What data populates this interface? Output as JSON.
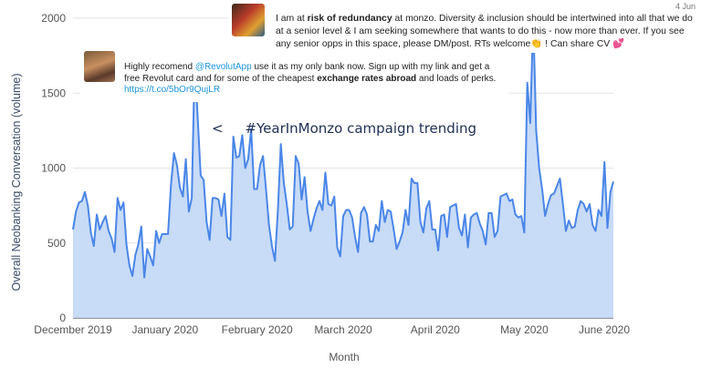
{
  "chart_data": {
    "type": "area",
    "xlabel": "Month",
    "ylabel": "Overall Neobanking Conversation (volume)",
    "ylim": [
      0,
      2000
    ],
    "yticks": [
      0,
      500,
      1000,
      1500,
      2000
    ],
    "xtick_labels": [
      "December 2019",
      "January 2020",
      "February 2020",
      "March 2020",
      "April 2020",
      "May 2020",
      "June 2020"
    ],
    "x_start": "2019-12-01",
    "grid": true,
    "colors": {
      "line": "#4a86e8",
      "fill": "#c5d9f7",
      "grid": "#e3e3e3",
      "axis": "#555555"
    },
    "values": [
      590,
      710,
      770,
      780,
      840,
      750,
      570,
      480,
      690,
      590,
      640,
      680,
      580,
      530,
      440,
      800,
      720,
      770,
      490,
      350,
      280,
      420,
      490,
      610,
      270,
      460,
      410,
      350,
      580,
      500,
      560,
      560,
      560,
      890,
      1100,
      1020,
      870,
      810,
      1060,
      710,
      800,
      1730,
      1330,
      950,
      920,
      640,
      520,
      800,
      800,
      790,
      680,
      830,
      540,
      520,
      1210,
      1070,
      1080,
      1220,
      1000,
      1060,
      1260,
      860,
      860,
      1020,
      1080,
      860,
      620,
      480,
      380,
      720,
      1160,
      900,
      760,
      590,
      610,
      1080,
      1030,
      790,
      940,
      710,
      580,
      660,
      730,
      780,
      720,
      970,
      760,
      750,
      810,
      470,
      410,
      680,
      720,
      720,
      670,
      540,
      440,
      700,
      740,
      690,
      510,
      510,
      620,
      580,
      780,
      640,
      720,
      710,
      590,
      460,
      510,
      570,
      720,
      620,
      930,
      900,
      900,
      640,
      570,
      730,
      780,
      590,
      590,
      450,
      680,
      690,
      540,
      740,
      750,
      760,
      600,
      550,
      690,
      470,
      670,
      690,
      700,
      630,
      580,
      490,
      700,
      700,
      540,
      580,
      810,
      820,
      830,
      780,
      790,
      690,
      670,
      680,
      570,
      1570,
      1300,
      2000,
      1250,
      1000,
      860,
      680,
      760,
      820,
      830,
      880,
      930,
      760,
      580,
      650,
      600,
      610,
      720,
      780,
      760,
      710,
      760,
      620,
      580,
      720,
      680,
      1040,
      600,
      840,
      910
    ]
  },
  "tweets": {
    "top": {
      "date": "4 Jun",
      "before": "I am at ",
      "bold": "risk of redundancy",
      "after": " at monzo. Diversity & inclusion should be intertwined into all that we do at a senior level & I am seeking somewhere that wants to do this - now more than ever. If you see any senior opps in this space, please DM/post. RTs welcome",
      "emoji1": "👏",
      "tail": " ! Can share CV ",
      "emoji2": "💕"
    },
    "mid": {
      "before": "Highly recomend ",
      "mention": "@RevolutApp",
      "middle": " use it as my only bank now. Sign up with my link and get a free Revolut card and for some of the cheapest ",
      "bold": "exchange rates abroad",
      "after": " and loads of perks.",
      "link": "https://t.co/5bOr9QujLR"
    }
  },
  "annotation": "<     #YearInMonzo campaign trending"
}
